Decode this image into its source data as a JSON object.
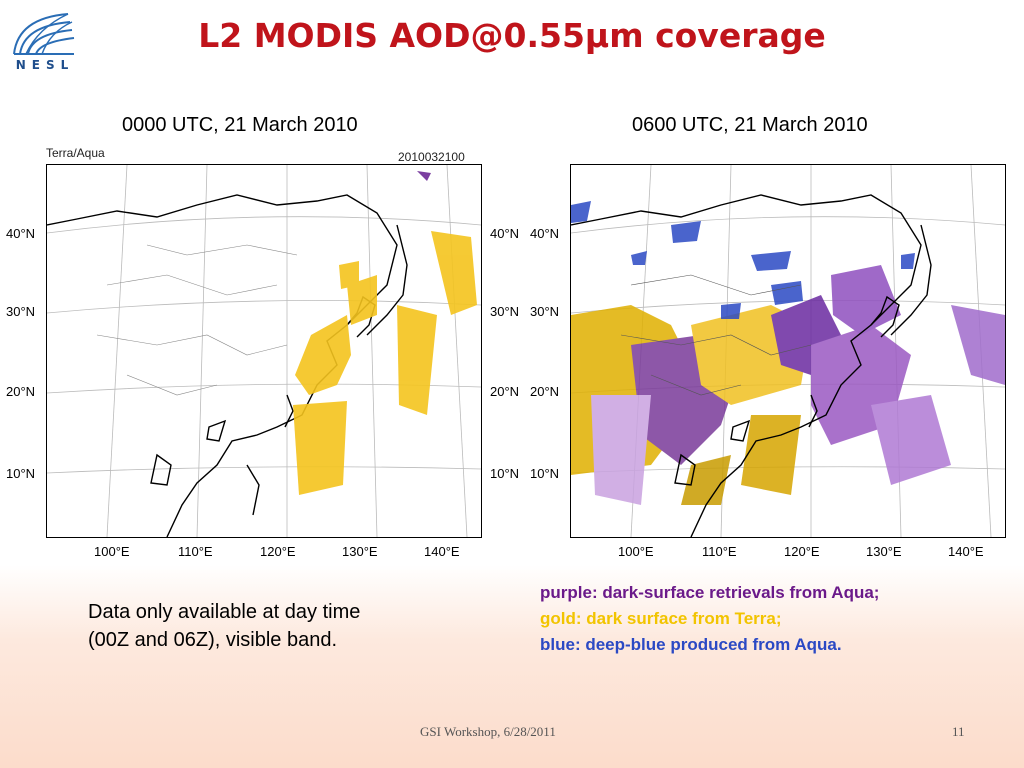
{
  "header": {
    "title": "L2 MODIS AOD@0.55μm coverage",
    "logo_text": "NESL"
  },
  "panels": [
    {
      "caption": "0000 UTC, 21 March 2010",
      "label_left": "Terra/Aqua",
      "label_right": "2010032100",
      "lat_labels": [
        "40°N",
        "30°N",
        "20°N",
        "10°N"
      ],
      "lon_labels": [
        "100°E",
        "110°E",
        "120°E",
        "130°E",
        "140°E"
      ]
    },
    {
      "caption": "0600 UTC, 21 March 2010",
      "lat_labels": [
        "40°N",
        "30°N",
        "20°N",
        "10°N"
      ],
      "lon_labels": [
        "100°E",
        "110°E",
        "120°E",
        "130°E",
        "140°E"
      ]
    }
  ],
  "notes": {
    "line1": "Data only available at day time",
    "line2": "(00Z and 06Z), visible band."
  },
  "legend": {
    "purple": "purple: dark-surface retrievals from Aqua;",
    "gold": "gold: dark surface from Terra;",
    "blue": "blue: deep-blue produced from Aqua."
  },
  "colors": {
    "title": "#c0141b",
    "purple": "#6b1a8a",
    "gold": "#f2c400",
    "blue": "#2b49c4"
  },
  "footer": {
    "text": "GSI Workshop, 6/28/2011",
    "page": "11"
  }
}
